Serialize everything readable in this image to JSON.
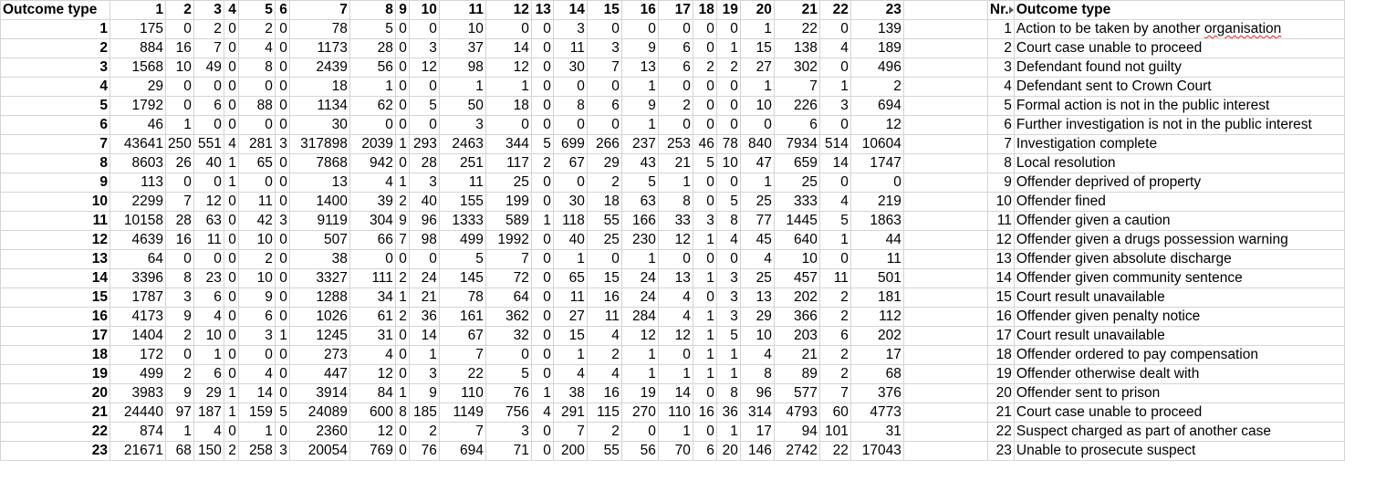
{
  "sheet": {
    "header_label": "Outcome type",
    "column_numbers": [
      "1",
      "2",
      "3",
      "4",
      "5",
      "6",
      "7",
      "8",
      "9",
      "10",
      "11",
      "12",
      "13",
      "14",
      "15",
      "16",
      "17",
      "18",
      "19",
      "20",
      "21",
      "22",
      "23"
    ],
    "rows": [
      {
        "label": "1",
        "values": [
          "175",
          "0",
          "2",
          "0",
          "2",
          "0",
          "78",
          "5",
          "0",
          "0",
          "10",
          "0",
          "0",
          "3",
          "0",
          "0",
          "0",
          "0",
          "0",
          "1",
          "22",
          "0",
          "139"
        ]
      },
      {
        "label": "2",
        "values": [
          "884",
          "16",
          "7",
          "0",
          "4",
          "0",
          "1173",
          "28",
          "0",
          "3",
          "37",
          "14",
          "0",
          "11",
          "3",
          "9",
          "6",
          "0",
          "1",
          "15",
          "138",
          "4",
          "189"
        ]
      },
      {
        "label": "3",
        "values": [
          "1568",
          "10",
          "49",
          "0",
          "8",
          "0",
          "2439",
          "56",
          "0",
          "12",
          "98",
          "12",
          "0",
          "30",
          "7",
          "13",
          "6",
          "2",
          "2",
          "27",
          "302",
          "0",
          "496"
        ]
      },
      {
        "label": "4",
        "values": [
          "29",
          "0",
          "0",
          "0",
          "0",
          "0",
          "18",
          "1",
          "0",
          "0",
          "1",
          "1",
          "0",
          "0",
          "0",
          "1",
          "0",
          "0",
          "0",
          "1",
          "7",
          "1",
          "2"
        ]
      },
      {
        "label": "5",
        "values": [
          "1792",
          "0",
          "6",
          "0",
          "88",
          "0",
          "1134",
          "62",
          "0",
          "5",
          "50",
          "18",
          "0",
          "8",
          "6",
          "9",
          "2",
          "0",
          "0",
          "10",
          "226",
          "3",
          "694"
        ]
      },
      {
        "label": "6",
        "values": [
          "46",
          "1",
          "0",
          "0",
          "0",
          "0",
          "30",
          "0",
          "0",
          "0",
          "3",
          "0",
          "0",
          "0",
          "0",
          "1",
          "0",
          "0",
          "0",
          "0",
          "6",
          "0",
          "12"
        ]
      },
      {
        "label": "7",
        "values": [
          "43641",
          "250",
          "551",
          "4",
          "281",
          "3",
          "317898",
          "2039",
          "1",
          "293",
          "2463",
          "344",
          "5",
          "699",
          "266",
          "237",
          "253",
          "46",
          "78",
          "840",
          "7934",
          "514",
          "10604"
        ]
      },
      {
        "label": "8",
        "values": [
          "8603",
          "26",
          "40",
          "1",
          "65",
          "0",
          "7868",
          "942",
          "0",
          "28",
          "251",
          "117",
          "2",
          "67",
          "29",
          "43",
          "21",
          "5",
          "10",
          "47",
          "659",
          "14",
          "1747"
        ]
      },
      {
        "label": "9",
        "values": [
          "113",
          "0",
          "0",
          "1",
          "0",
          "0",
          "13",
          "4",
          "1",
          "3",
          "11",
          "25",
          "0",
          "0",
          "2",
          "5",
          "1",
          "0",
          "0",
          "1",
          "25",
          "0",
          "0"
        ]
      },
      {
        "label": "10",
        "values": [
          "2299",
          "7",
          "12",
          "0",
          "11",
          "0",
          "1400",
          "39",
          "2",
          "40",
          "155",
          "199",
          "0",
          "30",
          "18",
          "63",
          "8",
          "0",
          "5",
          "25",
          "333",
          "4",
          "219"
        ]
      },
      {
        "label": "11",
        "values": [
          "10158",
          "28",
          "63",
          "0",
          "42",
          "3",
          "9119",
          "304",
          "9",
          "96",
          "1333",
          "589",
          "1",
          "118",
          "55",
          "166",
          "33",
          "3",
          "8",
          "77",
          "1445",
          "5",
          "1863"
        ]
      },
      {
        "label": "12",
        "values": [
          "4639",
          "16",
          "11",
          "0",
          "10",
          "0",
          "507",
          "66",
          "7",
          "98",
          "499",
          "1992",
          "0",
          "40",
          "25",
          "230",
          "12",
          "1",
          "4",
          "45",
          "640",
          "1",
          "44"
        ]
      },
      {
        "label": "13",
        "values": [
          "64",
          "0",
          "0",
          "0",
          "2",
          "0",
          "38",
          "0",
          "0",
          "0",
          "5",
          "7",
          "0",
          "1",
          "0",
          "1",
          "0",
          "0",
          "0",
          "4",
          "10",
          "0",
          "11"
        ]
      },
      {
        "label": "14",
        "values": [
          "3396",
          "8",
          "23",
          "0",
          "10",
          "0",
          "3327",
          "111",
          "2",
          "24",
          "145",
          "72",
          "0",
          "65",
          "15",
          "24",
          "13",
          "1",
          "3",
          "25",
          "457",
          "11",
          "501"
        ]
      },
      {
        "label": "15",
        "values": [
          "1787",
          "3",
          "6",
          "0",
          "9",
          "0",
          "1288",
          "34",
          "1",
          "21",
          "78",
          "64",
          "0",
          "11",
          "16",
          "24",
          "4",
          "0",
          "3",
          "13",
          "202",
          "2",
          "181"
        ]
      },
      {
        "label": "16",
        "values": [
          "4173",
          "9",
          "4",
          "0",
          "6",
          "0",
          "1026",
          "61",
          "2",
          "36",
          "161",
          "362",
          "0",
          "27",
          "11",
          "284",
          "4",
          "1",
          "3",
          "29",
          "366",
          "2",
          "112"
        ]
      },
      {
        "label": "17",
        "values": [
          "1404",
          "2",
          "10",
          "0",
          "3",
          "1",
          "1245",
          "31",
          "0",
          "14",
          "67",
          "32",
          "0",
          "15",
          "4",
          "12",
          "12",
          "1",
          "5",
          "10",
          "203",
          "6",
          "202"
        ]
      },
      {
        "label": "18",
        "values": [
          "172",
          "0",
          "1",
          "0",
          "0",
          "0",
          "273",
          "4",
          "0",
          "1",
          "7",
          "0",
          "0",
          "1",
          "2",
          "1",
          "0",
          "1",
          "1",
          "4",
          "21",
          "2",
          "17"
        ]
      },
      {
        "label": "19",
        "values": [
          "499",
          "2",
          "6",
          "0",
          "4",
          "0",
          "447",
          "12",
          "0",
          "3",
          "22",
          "5",
          "0",
          "4",
          "4",
          "1",
          "1",
          "1",
          "1",
          "8",
          "89",
          "2",
          "68"
        ]
      },
      {
        "label": "20",
        "values": [
          "3983",
          "9",
          "29",
          "1",
          "14",
          "0",
          "3914",
          "84",
          "1",
          "9",
          "110",
          "76",
          "1",
          "38",
          "16",
          "19",
          "14",
          "0",
          "8",
          "96",
          "577",
          "7",
          "376"
        ]
      },
      {
        "label": "21",
        "values": [
          "24440",
          "97",
          "187",
          "1",
          "159",
          "5",
          "24089",
          "600",
          "8",
          "185",
          "1149",
          "756",
          "4",
          "291",
          "115",
          "270",
          "110",
          "16",
          "36",
          "314",
          "4793",
          "60",
          "4773"
        ]
      },
      {
        "label": "22",
        "values": [
          "874",
          "1",
          "4",
          "0",
          "1",
          "0",
          "2360",
          "12",
          "0",
          "2",
          "7",
          "3",
          "0",
          "7",
          "2",
          "0",
          "1",
          "0",
          "1",
          "17",
          "94",
          "101",
          "31"
        ]
      },
      {
        "label": "23",
        "values": [
          "21671",
          "68",
          "150",
          "2",
          "258",
          "3",
          "20054",
          "769",
          "0",
          "76",
          "694",
          "71",
          "0",
          "200",
          "55",
          "56",
          "70",
          "6",
          "20",
          "146",
          "2742",
          "22",
          "17043"
        ]
      }
    ]
  },
  "legend": {
    "nr_header": "Nr.",
    "type_header": "Outcome type",
    "items": [
      {
        "nr": "1",
        "text": "Action to be taken by another organisation"
      },
      {
        "nr": "2",
        "text": "Court case unable to proceed"
      },
      {
        "nr": "3",
        "text": "Defendant found not guilty"
      },
      {
        "nr": "4",
        "text": "Defendant sent to Crown Court"
      },
      {
        "nr": "5",
        "text": "Formal action is not in the public interest"
      },
      {
        "nr": "6",
        "text": "Further investigation is not in the public interest"
      },
      {
        "nr": "7",
        "text": "Investigation complete"
      },
      {
        "nr": "8",
        "text": "Local resolution"
      },
      {
        "nr": "9",
        "text": "Offender deprived of property"
      },
      {
        "nr": "10",
        "text": "Offender fined"
      },
      {
        "nr": "11",
        "text": "Offender given a caution"
      },
      {
        "nr": "12",
        "text": "Offender given a drugs possession warning"
      },
      {
        "nr": "13",
        "text": "Offender given absolute discharge"
      },
      {
        "nr": "14",
        "text": "Offender given community sentence"
      },
      {
        "nr": "15",
        "text": "Court result unavailable"
      },
      {
        "nr": "16",
        "text": "Offender given penalty notice"
      },
      {
        "nr": "17",
        "text": "Court result unavailable"
      },
      {
        "nr": "18",
        "text": "Offender ordered to pay compensation"
      },
      {
        "nr": "19",
        "text": "Offender otherwise dealt with"
      },
      {
        "nr": "20",
        "text": "Offender sent to prison"
      },
      {
        "nr": "21",
        "text": "Court case unable to proceed"
      },
      {
        "nr": "22",
        "text": "Suspect charged as part of another case"
      },
      {
        "nr": "23",
        "text": "Unable to prosecute suspect"
      }
    ]
  },
  "colors": {
    "grid": "#d4d4d4",
    "spellcheck": "#e02020"
  }
}
